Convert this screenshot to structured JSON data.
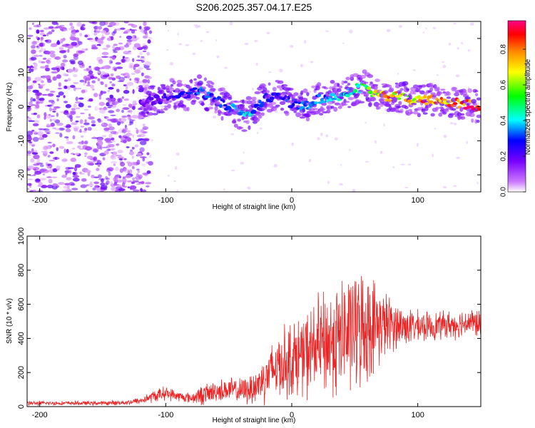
{
  "figure_title": "S206.2025.357.04.17.E25",
  "chart_data": [
    {
      "type": "heatmap",
      "title": "S206.2025.357.04.17.E25",
      "xlabel": "Height of straight line (km)",
      "ylabel": "Frequency (Hz)",
      "xlim": [
        -210,
        150
      ],
      "ylim": [
        -25,
        25
      ],
      "x_ticks": [
        -200,
        -100,
        0,
        100
      ],
      "y_ticks": [
        -20,
        -10,
        0,
        10,
        20
      ],
      "colorbar": {
        "label": "Normalized spectral amplitude",
        "range": [
          0,
          0.96
        ],
        "ticks": [
          0,
          0.2,
          0.4,
          0.6,
          0.8
        ],
        "colormap": [
          "#ffffff",
          "#cc77ff",
          "#7700ff",
          "#0000ff",
          "#00ffff",
          "#00ff00",
          "#ffff00",
          "#ff8800",
          "#ff0000",
          "#ff0088"
        ]
      },
      "ridge": {
        "x": [
          -120,
          -105,
          -95,
          -85,
          -75,
          -65,
          -55,
          -45,
          -38,
          -30,
          -20,
          -10,
          0,
          10,
          20,
          30,
          40,
          50,
          58,
          65,
          75,
          85,
          95,
          105,
          115,
          125,
          135,
          148
        ],
        "frequency": [
          1,
          2,
          4,
          3,
          5,
          3,
          1,
          -1,
          -3,
          -1,
          3,
          3,
          1,
          0,
          2,
          3,
          3,
          5,
          6,
          4,
          3,
          3,
          2,
          2,
          2,
          1,
          1,
          0
        ],
        "amplitude": [
          0.25,
          0.28,
          0.3,
          0.32,
          0.38,
          0.36,
          0.35,
          0.42,
          0.48,
          0.4,
          0.35,
          0.3,
          0.38,
          0.45,
          0.4,
          0.42,
          0.44,
          0.5,
          0.55,
          0.65,
          0.82,
          0.72,
          0.7,
          0.86,
          0.84,
          0.8,
          0.9,
          0.95
        ]
      },
      "noise_region": {
        "x_range": [
          -210,
          -120
        ],
        "amplitude": "low (0.1 to 0.3), scattered across all frequencies"
      }
    },
    {
      "type": "line",
      "xlabel": "Height of straight line (km)",
      "ylabel": "SNR (10 * v/v)",
      "xlim": [
        -210,
        150
      ],
      "ylim": [
        0,
        1000
      ],
      "x_ticks": [
        -200,
        -100,
        0,
        100
      ],
      "y_ticks": [
        0,
        200,
        400,
        600,
        800,
        1000
      ],
      "series": [
        {
          "name": "SNR",
          "color": "#ee2222",
          "x": [
            -210,
            -180,
            -150,
            -130,
            -120,
            -110,
            -100,
            -90,
            -80,
            -70,
            -60,
            -50,
            -40,
            -30,
            -20,
            -10,
            0,
            10,
            20,
            30,
            40,
            50,
            60,
            70,
            80,
            90,
            100,
            110,
            120,
            130,
            140,
            150
          ],
          "mean": [
            20,
            20,
            20,
            25,
            35,
            60,
            80,
            60,
            50,
            70,
            90,
            100,
            90,
            110,
            180,
            250,
            280,
            300,
            350,
            380,
            410,
            450,
            470,
            480,
            480,
            470,
            470,
            470,
            480,
            480,
            500,
            480
          ],
          "spread": [
            12,
            12,
            12,
            15,
            20,
            35,
            40,
            30,
            30,
            60,
            60,
            70,
            70,
            100,
            150,
            200,
            220,
            240,
            280,
            320,
            340,
            340,
            320,
            220,
            150,
            110,
            90,
            80,
            80,
            80,
            80,
            80
          ]
        }
      ]
    }
  ]
}
